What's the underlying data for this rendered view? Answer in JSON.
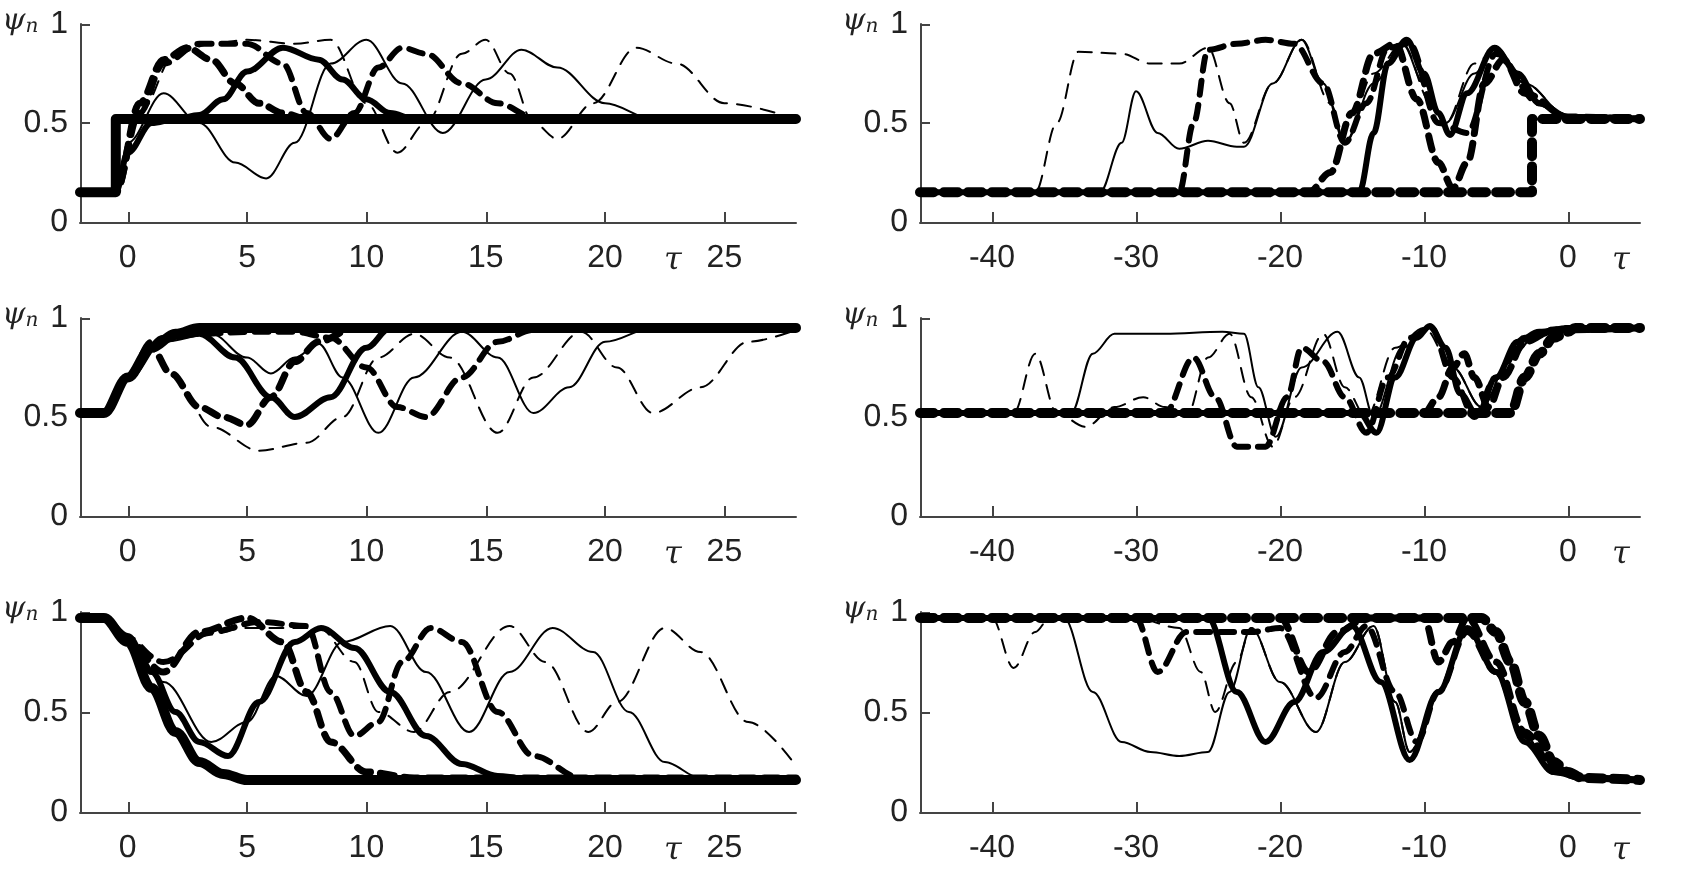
{
  "chart_data": [
    {
      "type": "line",
      "xlabel": "τ",
      "ylabel": "ψ$_{n}$",
      "xlim": [
        -2,
        28
      ],
      "xticks": [
        0,
        5,
        10,
        15,
        20,
        25
      ],
      "ylim": [
        0,
        1
      ],
      "yticks": [
        0,
        0.5,
        1
      ],
      "marker": "none",
      "series": [
        {
          "color": "#000000",
          "line_style": "solid",
          "x": [
            -2,
            -0.5,
            -0.5,
            28
          ],
          "values": [
            0.15,
            0.15,
            0.52,
            0.52
          ]
        },
        {
          "color": "#000000",
          "line_style": "solid",
          "x": [
            -2,
            -0.5,
            0,
            1,
            2,
            3,
            4,
            5,
            6.5,
            8,
            9,
            10,
            11,
            12,
            14,
            28
          ],
          "values": [
            0.15,
            0.15,
            0.35,
            0.5,
            0.52,
            0.54,
            0.62,
            0.76,
            0.88,
            0.82,
            0.72,
            0.62,
            0.55,
            0.52,
            0.52,
            0.52
          ]
        },
        {
          "color": "#000000",
          "line_style": "dashed",
          "x": [
            -2,
            -0.5,
            0.5,
            1.5,
            2.5,
            3.5,
            4.5,
            5.5,
            6.5,
            7.5,
            9,
            28
          ],
          "values": [
            0.15,
            0.15,
            0.6,
            0.82,
            0.88,
            0.82,
            0.7,
            0.6,
            0.55,
            0.52,
            0.52,
            0.52
          ]
        },
        {
          "color": "#000000",
          "line_style": "dashed",
          "x": [
            -2,
            -0.5,
            0.5,
            1.5,
            3,
            5,
            6.5,
            7.5,
            8.5,
            9.5,
            10.5,
            11.5,
            12.5,
            14,
            15.5,
            17,
            28
          ],
          "values": [
            0.15,
            0.15,
            0.55,
            0.8,
            0.9,
            0.9,
            0.8,
            0.55,
            0.42,
            0.55,
            0.78,
            0.88,
            0.85,
            0.7,
            0.6,
            0.53,
            0.52
          ]
        },
        {
          "color": "#000000",
          "line_style": "solid",
          "x": [
            -2,
            -0.5,
            0,
            1.5,
            3,
            4.5,
            5.8,
            7,
            8.5,
            10,
            11.5,
            13.2,
            15,
            16.5,
            18,
            20,
            22,
            28
          ],
          "values": [
            0.15,
            0.15,
            0.4,
            0.65,
            0.5,
            0.3,
            0.22,
            0.4,
            0.8,
            0.92,
            0.7,
            0.45,
            0.72,
            0.87,
            0.78,
            0.6,
            0.52,
            0.52
          ]
        },
        {
          "color": "#000000",
          "line_style": "dashed",
          "x": [
            -2,
            -0.5,
            0.5,
            2,
            3.5,
            5,
            7,
            8.5,
            10,
            11.3,
            12.5,
            14,
            15,
            16,
            17,
            18,
            19.5,
            21.3,
            23,
            25,
            28
          ],
          "values": [
            0.15,
            0.15,
            0.55,
            0.85,
            0.9,
            0.92,
            0.9,
            0.92,
            0.6,
            0.35,
            0.5,
            0.85,
            0.92,
            0.75,
            0.5,
            0.42,
            0.6,
            0.88,
            0.8,
            0.6,
            0.52
          ]
        }
      ]
    },
    {
      "type": "line",
      "xlabel": "τ",
      "ylabel": "ψ$_{n}$",
      "xlim": [
        -45,
        5
      ],
      "xticks": [
        -40,
        -30,
        -20,
        -10,
        0
      ],
      "ylim": [
        0,
        1
      ],
      "yticks": [
        0,
        0.5,
        1
      ],
      "marker": "none",
      "series": [
        {
          "color": "#000000",
          "line_style": "dashed",
          "x": [
            -45,
            -2.5,
            -2.5,
            5
          ],
          "values": [
            0.15,
            0.15,
            0.52,
            0.52
          ]
        },
        {
          "color": "#000000",
          "line_style": "solid",
          "x": [
            -45,
            -14.5,
            -13.5,
            -12.5,
            -11.2,
            -10,
            -9,
            -8.2,
            -7,
            -5.1,
            -3.5,
            -2,
            0,
            5
          ],
          "values": [
            0.15,
            0.15,
            0.45,
            0.8,
            0.92,
            0.75,
            0.55,
            0.44,
            0.65,
            0.88,
            0.75,
            0.6,
            0.53,
            0.52
          ]
        },
        {
          "color": "#000000",
          "line_style": "dashed",
          "x": [
            -45,
            -18,
            -16.5,
            -15,
            -13.5,
            -12,
            -10.5,
            -9,
            -8,
            -7,
            -5.8,
            -4.5,
            -3,
            0,
            5
          ],
          "values": [
            0.15,
            0.15,
            0.25,
            0.55,
            0.85,
            0.9,
            0.62,
            0.3,
            0.17,
            0.3,
            0.7,
            0.82,
            0.65,
            0.53,
            0.52
          ]
        },
        {
          "color": "#000000",
          "line_style": "dashed",
          "x": [
            -45,
            -27,
            -26,
            -25,
            -23,
            -21,
            -19,
            -17,
            -15.5,
            -14,
            -12.5,
            -11,
            -9,
            -7,
            -5,
            -2,
            0,
            5
          ],
          "values": [
            0.15,
            0.15,
            0.5,
            0.87,
            0.9,
            0.92,
            0.9,
            0.7,
            0.4,
            0.6,
            0.88,
            0.9,
            0.5,
            0.45,
            0.85,
            0.6,
            0.53,
            0.52
          ]
        },
        {
          "color": "#000000",
          "line_style": "solid",
          "x": [
            -45,
            -32.5,
            -31,
            -30,
            -28.5,
            -27,
            -25,
            -23,
            -22.5,
            -20.5,
            -18.5,
            -17,
            -15.5,
            -13.5,
            -11.5,
            -10,
            -8.5,
            -6.5,
            -5,
            -3,
            0,
            5
          ],
          "values": [
            0.15,
            0.15,
            0.4,
            0.66,
            0.45,
            0.37,
            0.41,
            0.38,
            0.38,
            0.7,
            0.92,
            0.7,
            0.4,
            0.7,
            0.9,
            0.7,
            0.5,
            0.75,
            0.88,
            0.7,
            0.53,
            0.52
          ]
        },
        {
          "color": "#000000",
          "line_style": "dashed",
          "x": [
            -45,
            -37,
            -35.5,
            -34,
            -31,
            -29,
            -27,
            -25,
            -23.5,
            -22.5,
            -20.5,
            -18.5,
            -16.5,
            -15.5,
            -13.5,
            -11.5,
            -9.5,
            -8.5,
            -6.5,
            -5,
            -3,
            0,
            5
          ],
          "values": [
            0.15,
            0.15,
            0.5,
            0.86,
            0.85,
            0.8,
            0.8,
            0.88,
            0.6,
            0.4,
            0.7,
            0.92,
            0.6,
            0.4,
            0.75,
            0.9,
            0.6,
            0.5,
            0.8,
            0.87,
            0.7,
            0.53,
            0.52
          ]
        }
      ]
    },
    {
      "type": "line",
      "xlabel": "τ",
      "ylabel": "ψ$_{n}$",
      "xlim": [
        -2,
        28
      ],
      "xticks": [
        0,
        5,
        10,
        15,
        20,
        25
      ],
      "ylim": [
        0,
        1
      ],
      "yticks": [
        0,
        0.5,
        1
      ],
      "marker": "none",
      "series": [
        {
          "color": "#000000",
          "line_style": "solid",
          "x": [
            -2,
            -1,
            0,
            1,
            2,
            3,
            28
          ],
          "values": [
            0.52,
            0.52,
            0.7,
            0.85,
            0.92,
            0.95,
            0.95
          ]
        },
        {
          "color": "#000000",
          "line_style": "solid",
          "x": [
            -2,
            -1,
            0,
            1.5,
            3,
            4.5,
            6,
            7,
            8.5,
            10,
            11,
            28
          ],
          "values": [
            0.52,
            0.52,
            0.7,
            0.9,
            0.92,
            0.8,
            0.6,
            0.5,
            0.6,
            0.85,
            0.95,
            0.95
          ]
        },
        {
          "color": "#000000",
          "line_style": "dashed",
          "x": [
            -2,
            -1,
            0,
            1,
            1.8,
            3,
            4,
            5,
            6,
            7,
            8,
            9.5,
            28
          ],
          "values": [
            0.52,
            0.52,
            0.7,
            0.85,
            0.72,
            0.55,
            0.5,
            0.46,
            0.6,
            0.78,
            0.88,
            0.95,
            0.95
          ]
        },
        {
          "color": "#000000",
          "line_style": "dashed",
          "x": [
            -2,
            -1,
            0,
            1,
            3,
            5,
            7,
            8.5,
            10,
            11.3,
            12.5,
            14,
            15.5,
            17,
            28
          ],
          "values": [
            0.52,
            0.52,
            0.7,
            0.88,
            0.92,
            0.93,
            0.93,
            0.9,
            0.75,
            0.55,
            0.5,
            0.7,
            0.88,
            0.94,
            0.95
          ]
        },
        {
          "color": "#000000",
          "line_style": "solid",
          "x": [
            -2,
            -1,
            0,
            1.5,
            3.5,
            5,
            6,
            7,
            8,
            9,
            10.5,
            12,
            14,
            15.5,
            17,
            18.5,
            20,
            22,
            28
          ],
          "values": [
            0.52,
            0.52,
            0.7,
            0.88,
            0.92,
            0.8,
            0.72,
            0.8,
            0.87,
            0.7,
            0.42,
            0.7,
            0.93,
            0.8,
            0.52,
            0.65,
            0.88,
            0.95,
            0.95
          ]
        },
        {
          "color": "#000000",
          "line_style": "dashed",
          "x": [
            -2,
            -1,
            0,
            1,
            2,
            3.5,
            5.5,
            7.5,
            9,
            10.5,
            12,
            13.5,
            15.5,
            17,
            19,
            20.5,
            22,
            24,
            26,
            28
          ],
          "values": [
            0.52,
            0.52,
            0.7,
            0.85,
            0.7,
            0.45,
            0.33,
            0.37,
            0.5,
            0.8,
            0.92,
            0.8,
            0.42,
            0.7,
            0.93,
            0.75,
            0.52,
            0.65,
            0.88,
            0.94
          ]
        }
      ]
    },
    {
      "type": "line",
      "xlabel": "τ",
      "ylabel": "ψ$_{n}$",
      "xlim": [
        -45,
        5
      ],
      "xticks": [
        -40,
        -30,
        -20,
        -10,
        0
      ],
      "ylim": [
        0,
        1
      ],
      "yticks": [
        0,
        0.5,
        1
      ],
      "marker": "none",
      "series": [
        {
          "color": "#000000",
          "line_style": "dashed",
          "x": [
            -45,
            -4,
            -3,
            -2,
            -1,
            0,
            0.5,
            5
          ],
          "values": [
            0.52,
            0.52,
            0.7,
            0.82,
            0.9,
            0.93,
            0.95,
            0.95
          ]
        },
        {
          "color": "#000000",
          "line_style": "solid",
          "x": [
            -45,
            -14.5,
            -13.3,
            -12,
            -10.5,
            -9.6,
            -8.5,
            -7.5,
            -6.3,
            -5,
            -3.5,
            -2,
            0,
            5
          ],
          "values": [
            0.52,
            0.52,
            0.42,
            0.7,
            0.9,
            0.96,
            0.85,
            0.62,
            0.51,
            0.7,
            0.88,
            0.93,
            0.95,
            0.95
          ]
        },
        {
          "color": "#000000",
          "line_style": "dashed",
          "x": [
            -45,
            -10,
            -9,
            -8,
            -7.2,
            -6.5,
            -5.5,
            -4.5,
            -3,
            -1,
            5
          ],
          "values": [
            0.52,
            0.52,
            0.6,
            0.75,
            0.82,
            0.7,
            0.55,
            0.7,
            0.88,
            0.94,
            0.95
          ]
        },
        {
          "color": "#000000",
          "line_style": "dashed",
          "x": [
            -45,
            -28,
            -26,
            -24.5,
            -23,
            -21,
            -19.5,
            -18.5,
            -17,
            -15.5,
            -14,
            -12.5,
            -11,
            -9.5,
            -8,
            -6.5,
            -5,
            -3,
            0,
            5
          ],
          "values": [
            0.52,
            0.52,
            0.8,
            0.6,
            0.35,
            0.35,
            0.6,
            0.85,
            0.78,
            0.6,
            0.42,
            0.7,
            0.9,
            0.95,
            0.7,
            0.5,
            0.7,
            0.9,
            0.95,
            0.95
          ]
        },
        {
          "color": "#000000",
          "line_style": "solid",
          "x": [
            -45,
            -34.5,
            -33,
            -31.5,
            -28,
            -24,
            -22.5,
            -21.5,
            -20.3,
            -18.5,
            -16,
            -14.5,
            -13.5,
            -11.5,
            -9.5,
            -8,
            -6,
            -4,
            -2,
            5
          ],
          "values": [
            0.52,
            0.52,
            0.82,
            0.92,
            0.92,
            0.93,
            0.92,
            0.65,
            0.4,
            0.75,
            0.93,
            0.7,
            0.5,
            0.85,
            0.95,
            0.75,
            0.55,
            0.8,
            0.93,
            0.95
          ]
        },
        {
          "color": "#000000",
          "line_style": "dashed",
          "x": [
            -45,
            -38.5,
            -37,
            -35.5,
            -33.5,
            -31.5,
            -29.5,
            -28,
            -26.5,
            -25,
            -23.5,
            -22,
            -20.5,
            -19,
            -17,
            -15.5,
            -14,
            -12,
            -10,
            -8,
            -6,
            -4,
            -2,
            5
          ],
          "values": [
            0.52,
            0.52,
            0.82,
            0.52,
            0.45,
            0.55,
            0.6,
            0.55,
            0.5,
            0.8,
            0.92,
            0.6,
            0.35,
            0.6,
            0.92,
            0.65,
            0.5,
            0.85,
            0.95,
            0.75,
            0.55,
            0.8,
            0.93,
            0.95
          ]
        }
      ]
    },
    {
      "type": "line",
      "xlabel": "τ",
      "ylabel": "ψ$_{n}$",
      "xlim": [
        -2,
        28
      ],
      "xticks": [
        0,
        5,
        10,
        15,
        20,
        25
      ],
      "ylim": [
        0,
        1
      ],
      "yticks": [
        0,
        0.5,
        1
      ],
      "marker": "none",
      "series": [
        {
          "color": "#000000",
          "line_style": "solid",
          "x": [
            -2,
            -1,
            0,
            1,
            2,
            3,
            4,
            5,
            28
          ],
          "values": [
            0.97,
            0.97,
            0.85,
            0.62,
            0.4,
            0.25,
            0.19,
            0.16,
            0.16
          ]
        },
        {
          "color": "#000000",
          "line_style": "solid",
          "x": [
            -2,
            -1,
            0,
            1,
            2,
            3,
            4.2,
            5.5,
            7,
            8.1,
            9.5,
            11,
            12.5,
            14,
            15.5,
            17,
            28
          ],
          "values": [
            0.97,
            0.97,
            0.88,
            0.7,
            0.5,
            0.35,
            0.28,
            0.55,
            0.85,
            0.92,
            0.82,
            0.6,
            0.38,
            0.24,
            0.18,
            0.16,
            0.16
          ]
        },
        {
          "color": "#000000",
          "line_style": "dashed",
          "x": [
            -2,
            -1,
            0,
            1.5,
            3,
            5,
            6.5,
            7.5,
            8.5,
            10,
            12,
            28
          ],
          "values": [
            0.97,
            0.97,
            0.85,
            0.7,
            0.9,
            0.97,
            0.85,
            0.6,
            0.35,
            0.2,
            0.17,
            0.17
          ]
        },
        {
          "color": "#000000",
          "line_style": "dashed",
          "x": [
            -2,
            -1,
            0,
            1.5,
            3.5,
            5.5,
            7.5,
            8.5,
            9.5,
            10.5,
            11.5,
            12.7,
            14,
            15.5,
            17,
            19,
            28
          ],
          "values": [
            0.97,
            0.97,
            0.85,
            0.75,
            0.9,
            0.95,
            0.93,
            0.6,
            0.38,
            0.45,
            0.75,
            0.92,
            0.85,
            0.5,
            0.28,
            0.17,
            0.17
          ]
        },
        {
          "color": "#000000",
          "line_style": "solid",
          "x": [
            -2,
            -1,
            0,
            1.5,
            3.5,
            5,
            6.2,
            7.5,
            9,
            11,
            12.5,
            14.3,
            16,
            17.8,
            19.5,
            21,
            22.5,
            24,
            28
          ],
          "values": [
            0.97,
            0.97,
            0.87,
            0.65,
            0.35,
            0.45,
            0.68,
            0.58,
            0.85,
            0.93,
            0.7,
            0.4,
            0.7,
            0.92,
            0.8,
            0.5,
            0.25,
            0.17,
            0.16
          ]
        },
        {
          "color": "#000000",
          "line_style": "dashed",
          "x": [
            -2,
            -1,
            0,
            1.5,
            3,
            5,
            8,
            9.5,
            10.5,
            12,
            13.5,
            16,
            17.5,
            19.3,
            20.5,
            22.5,
            24,
            26,
            28
          ],
          "values": [
            0.97,
            0.97,
            0.88,
            0.75,
            0.88,
            0.92,
            0.92,
            0.75,
            0.5,
            0.4,
            0.6,
            0.93,
            0.75,
            0.4,
            0.55,
            0.92,
            0.8,
            0.45,
            0.23
          ]
        }
      ]
    },
    {
      "type": "line",
      "xlabel": "τ",
      "ylabel": "ψ$_{n}$",
      "xlim": [
        -45,
        5
      ],
      "xticks": [
        -40,
        -30,
        -20,
        -10,
        0
      ],
      "ylim": [
        0,
        1
      ],
      "yticks": [
        0,
        0.5,
        1
      ],
      "marker": "none",
      "series": [
        {
          "color": "#000000",
          "line_style": "dashed",
          "x": [
            -45,
            -6,
            -5,
            -4,
            -3,
            -2,
            -1,
            0,
            1,
            5
          ],
          "values": [
            0.97,
            0.97,
            0.9,
            0.75,
            0.55,
            0.38,
            0.25,
            0.2,
            0.17,
            0.16
          ]
        },
        {
          "color": "#000000",
          "line_style": "solid",
          "x": [
            -45,
            -25,
            -23,
            -21,
            -19,
            -17,
            -15,
            -13,
            -11,
            -9,
            -7,
            -5,
            -3,
            -1,
            1,
            5
          ],
          "values": [
            0.97,
            0.97,
            0.6,
            0.35,
            0.55,
            0.8,
            0.93,
            0.65,
            0.26,
            0.6,
            0.92,
            0.7,
            0.35,
            0.2,
            0.17,
            0.16
          ]
        },
        {
          "color": "#000000",
          "line_style": "dashed",
          "x": [
            -45,
            -20,
            -18,
            -16,
            -14,
            -12,
            -10,
            -9,
            -8,
            -7,
            -5,
            -3,
            -1,
            1,
            5
          ],
          "values": [
            0.97,
            0.97,
            0.7,
            0.9,
            0.97,
            0.97,
            0.97,
            0.75,
            0.85,
            0.97,
            0.75,
            0.4,
            0.22,
            0.17,
            0.16
          ]
        },
        {
          "color": "#000000",
          "line_style": "dashed",
          "x": [
            -45,
            -30,
            -28.5,
            -26.5,
            -22,
            -20,
            -17.5,
            -15.5,
            -14,
            -12,
            -10.5,
            -9,
            -7,
            -5,
            -3,
            -1,
            1,
            5
          ],
          "values": [
            0.97,
            0.97,
            0.7,
            0.9,
            0.9,
            0.92,
            0.57,
            0.8,
            0.93,
            0.6,
            0.35,
            0.6,
            0.9,
            0.7,
            0.38,
            0.2,
            0.17,
            0.16
          ]
        },
        {
          "color": "#000000",
          "line_style": "solid",
          "x": [
            -45,
            -35,
            -33,
            -31,
            -29,
            -27,
            -25,
            -23.5,
            -22,
            -20,
            -17.5,
            -15.5,
            -13.5,
            -12,
            -11,
            -9,
            -7,
            -5,
            -3,
            -1,
            1,
            5
          ],
          "values": [
            0.97,
            0.97,
            0.6,
            0.35,
            0.3,
            0.28,
            0.3,
            0.6,
            0.92,
            0.65,
            0.4,
            0.75,
            0.93,
            0.55,
            0.3,
            0.6,
            0.9,
            0.7,
            0.38,
            0.2,
            0.17,
            0.16
          ]
        },
        {
          "color": "#000000",
          "line_style": "dashed",
          "x": [
            -45,
            -40,
            -38.5,
            -37,
            -36,
            -30,
            -27,
            -25.5,
            -24.5,
            -23,
            -22,
            -20,
            -17.5,
            -15.5,
            -13.5,
            -12,
            -11,
            -9,
            -7,
            -5,
            -3,
            -1,
            1,
            5
          ],
          "values": [
            0.97,
            0.97,
            0.72,
            0.9,
            0.97,
            0.97,
            0.92,
            0.7,
            0.5,
            0.75,
            0.92,
            0.65,
            0.4,
            0.75,
            0.93,
            0.55,
            0.3,
            0.6,
            0.9,
            0.7,
            0.38,
            0.2,
            0.17,
            0.16
          ]
        }
      ]
    }
  ]
}
